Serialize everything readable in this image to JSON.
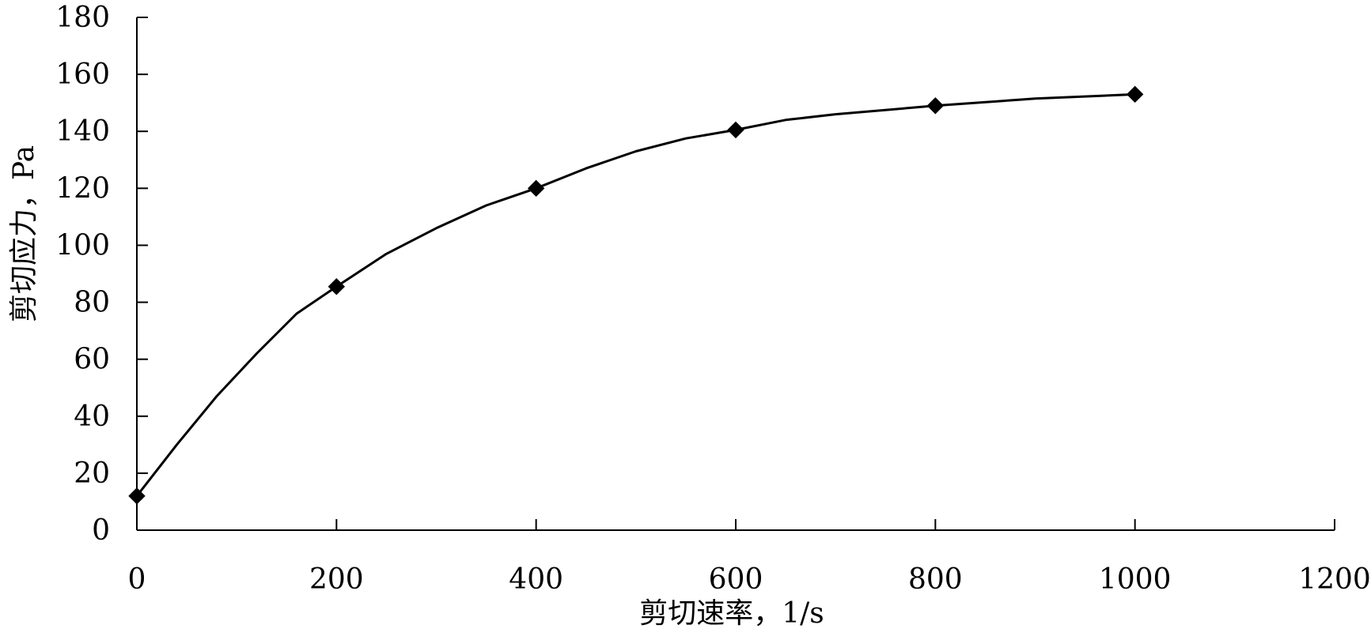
{
  "chart_data": {
    "type": "line",
    "title": "",
    "xlabel": "剪切速率，1/s",
    "ylabel": "剪切应力，Pa",
    "xlim": [
      0,
      1200
    ],
    "ylim": [
      0,
      180
    ],
    "x_ticks": [
      0,
      200,
      400,
      600,
      800,
      1000,
      1200
    ],
    "y_ticks": [
      0,
      20,
      40,
      60,
      80,
      100,
      120,
      140,
      160,
      180
    ],
    "grid": false,
    "legend": "none",
    "marker": "diamond",
    "line_color": "#000000",
    "series": [
      {
        "x": [
          0,
          200,
          400,
          600,
          800,
          1000
        ],
        "y": [
          12,
          85.5,
          120,
          140.5,
          149,
          153
        ]
      }
    ],
    "curve": {
      "x": [
        0,
        40,
        80,
        120,
        160,
        200,
        250,
        300,
        350,
        400,
        450,
        500,
        550,
        600,
        650,
        700,
        800,
        900,
        1000
      ],
      "y": [
        12,
        30,
        47,
        62,
        76,
        85.5,
        97,
        106,
        114,
        120,
        127,
        133,
        137.5,
        140.5,
        144,
        146,
        149,
        151.5,
        153
      ]
    }
  }
}
